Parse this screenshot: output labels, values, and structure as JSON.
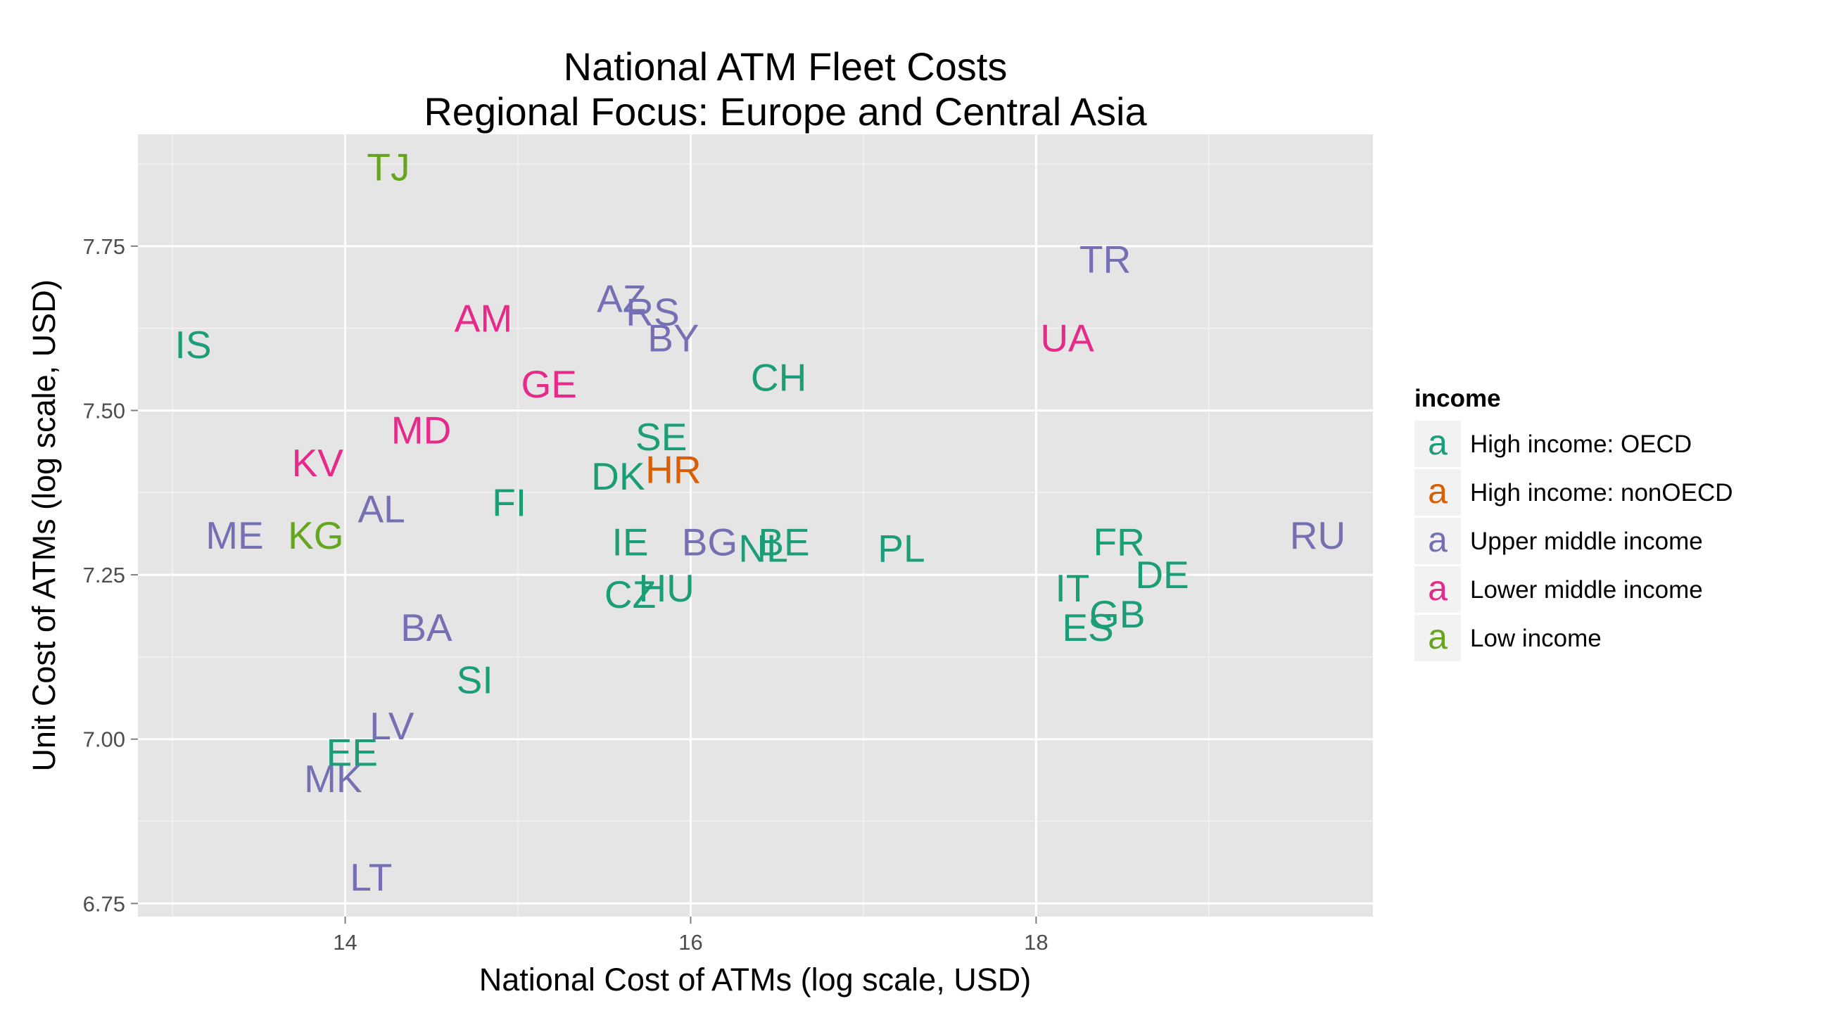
{
  "chart_data": {
    "type": "scatter",
    "title": "National ATM Fleet Costs",
    "subtitle": "Regional Focus: Europe and Central Asia",
    "xlabel": "National Cost of ATMs (log scale, USD)",
    "ylabel": "Unit Cost of ATMs (log scale, USD)",
    "xlim": [
      12.8,
      19.95
    ],
    "ylim": [
      6.73,
      7.92
    ],
    "x_ticks": [
      14,
      16,
      18
    ],
    "y_ticks": [
      6.75,
      7.0,
      7.25,
      7.5,
      7.75
    ],
    "x_tick_labels": [
      "14",
      "16",
      "18"
    ],
    "y_tick_labels": [
      "6.75",
      "7.00",
      "7.25",
      "7.50",
      "7.75"
    ],
    "grid": true,
    "legend_position": "right",
    "legend_title": "income",
    "legend": [
      {
        "name": "High income: OECD",
        "color": "#1b9e77",
        "key": "a"
      },
      {
        "name": "High income: nonOECD",
        "color": "#d95f02",
        "key": "a"
      },
      {
        "name": "Upper middle income",
        "color": "#7570b3",
        "key": "a"
      },
      {
        "name": "Lower middle income",
        "color": "#e7298a",
        "key": "a"
      },
      {
        "name": "Low income",
        "color": "#66a61e",
        "key": "a"
      }
    ],
    "points": [
      {
        "label": "TJ",
        "x": 14.25,
        "y": 7.87,
        "group": 4
      },
      {
        "label": "TR",
        "x": 18.4,
        "y": 7.73,
        "group": 2
      },
      {
        "label": "AZ",
        "x": 15.6,
        "y": 7.67,
        "group": 2
      },
      {
        "label": "RS",
        "x": 15.78,
        "y": 7.65,
        "group": 2
      },
      {
        "label": "AM",
        "x": 14.8,
        "y": 7.64,
        "group": 3
      },
      {
        "label": "BY",
        "x": 15.9,
        "y": 7.61,
        "group": 2
      },
      {
        "label": "UA",
        "x": 18.18,
        "y": 7.61,
        "group": 3
      },
      {
        "label": "IS",
        "x": 13.12,
        "y": 7.6,
        "group": 0
      },
      {
        "label": "CH",
        "x": 16.51,
        "y": 7.55,
        "group": 0
      },
      {
        "label": "GE",
        "x": 15.18,
        "y": 7.54,
        "group": 3
      },
      {
        "label": "MD",
        "x": 14.44,
        "y": 7.47,
        "group": 3
      },
      {
        "label": "SE",
        "x": 15.83,
        "y": 7.46,
        "group": 0
      },
      {
        "label": "KV",
        "x": 13.84,
        "y": 7.42,
        "group": 3
      },
      {
        "label": "HR",
        "x": 15.9,
        "y": 7.41,
        "group": 1
      },
      {
        "label": "DK",
        "x": 15.58,
        "y": 7.4,
        "group": 0
      },
      {
        "label": "FI",
        "x": 14.95,
        "y": 7.36,
        "group": 0
      },
      {
        "label": "AL",
        "x": 14.21,
        "y": 7.35,
        "group": 2
      },
      {
        "label": "ME",
        "x": 13.36,
        "y": 7.31,
        "group": 2
      },
      {
        "label": "KG",
        "x": 13.83,
        "y": 7.31,
        "group": 4
      },
      {
        "label": "RU",
        "x": 19.63,
        "y": 7.31,
        "group": 2
      },
      {
        "label": "FR",
        "x": 18.48,
        "y": 7.3,
        "group": 0
      },
      {
        "label": "IE",
        "x": 15.65,
        "y": 7.3,
        "group": 0
      },
      {
        "label": "BE",
        "x": 16.54,
        "y": 7.3,
        "group": 0
      },
      {
        "label": "BG",
        "x": 16.11,
        "y": 7.3,
        "group": 2
      },
      {
        "label": "NL",
        "x": 16.42,
        "y": 7.29,
        "group": 0
      },
      {
        "label": "PL",
        "x": 17.22,
        "y": 7.29,
        "group": 0
      },
      {
        "label": "DE",
        "x": 18.73,
        "y": 7.25,
        "group": 0
      },
      {
        "label": "IT",
        "x": 18.21,
        "y": 7.23,
        "group": 0
      },
      {
        "label": "HU",
        "x": 15.86,
        "y": 7.23,
        "group": 0
      },
      {
        "label": "CZ",
        "x": 15.65,
        "y": 7.22,
        "group": 0
      },
      {
        "label": "GB",
        "x": 18.47,
        "y": 7.19,
        "group": 0
      },
      {
        "label": "ES",
        "x": 18.3,
        "y": 7.17,
        "group": 0
      },
      {
        "label": "BA",
        "x": 14.47,
        "y": 7.17,
        "group": 2
      },
      {
        "label": "SI",
        "x": 14.75,
        "y": 7.09,
        "group": 0
      },
      {
        "label": "LV",
        "x": 14.27,
        "y": 7.02,
        "group": 2
      },
      {
        "label": "EE",
        "x": 14.04,
        "y": 6.98,
        "group": 0
      },
      {
        "label": "MK",
        "x": 13.93,
        "y": 6.94,
        "group": 2
      },
      {
        "label": "LT",
        "x": 14.15,
        "y": 6.79,
        "group": 2
      }
    ]
  }
}
